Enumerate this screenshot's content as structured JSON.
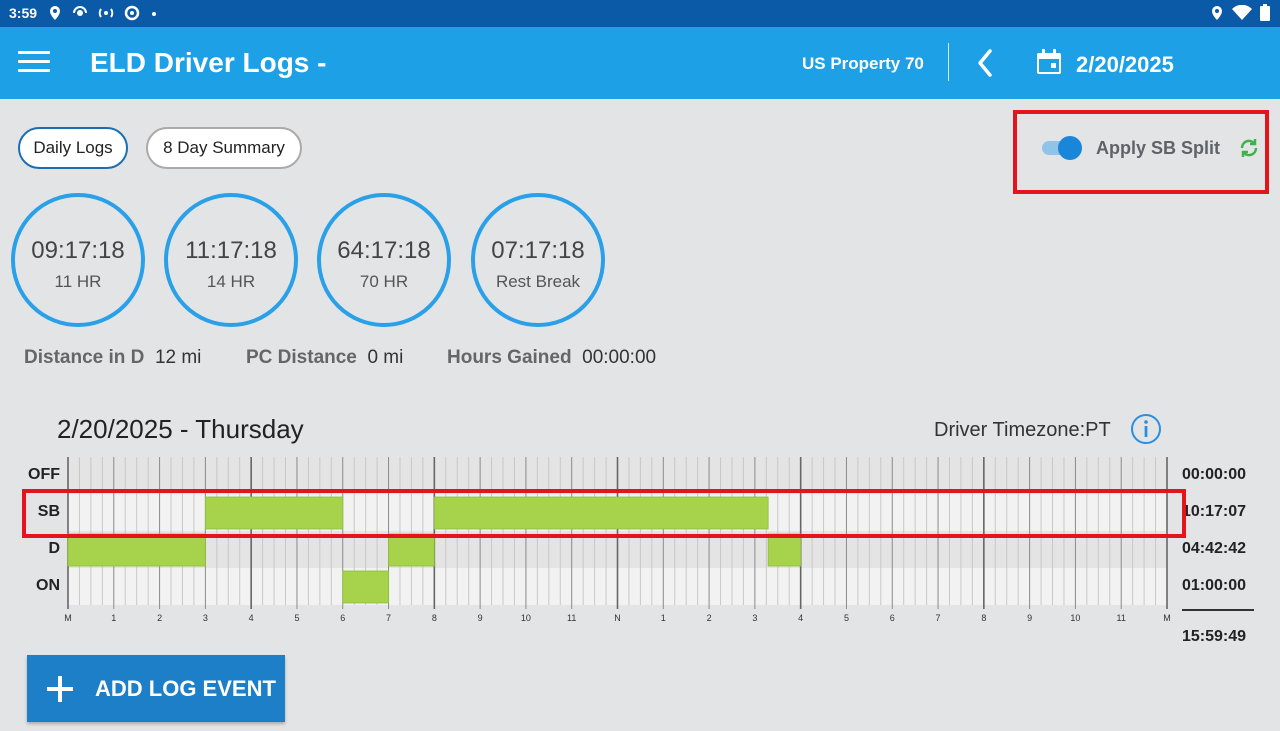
{
  "status": {
    "time": "3:59"
  },
  "appbar": {
    "title": "ELD Driver Logs -",
    "ruleset": "US Property 70",
    "date": "2/20/2025"
  },
  "tabs": [
    {
      "label": "Daily Logs",
      "active": true
    },
    {
      "label": "8 Day Summary",
      "active": false
    }
  ],
  "sb_split": {
    "label": "Apply SB Split",
    "enabled": true
  },
  "gauges": [
    {
      "value": "09:17:18",
      "label": "11 HR"
    },
    {
      "value": "11:17:18",
      "label": "14 HR"
    },
    {
      "value": "64:17:18",
      "label": "70 HR"
    },
    {
      "value": "07:17:18",
      "label": "Rest Break"
    }
  ],
  "stats": [
    {
      "label": "Distance in D",
      "value": "12 mi"
    },
    {
      "label": "PC Distance",
      "value": "0 mi"
    },
    {
      "label": "Hours Gained",
      "value": "00:00:00"
    }
  ],
  "log": {
    "day_title": "2/20/2025 - Thursday",
    "timezone_label": "Driver Timezone:",
    "timezone": "PT",
    "rows": [
      {
        "code": "OFF",
        "total": "00:00:00"
      },
      {
        "code": "SB",
        "total": "10:17:07"
      },
      {
        "code": "D",
        "total": "04:42:42"
      },
      {
        "code": "ON",
        "total": "01:00:00"
      }
    ],
    "grand_total": "15:59:49",
    "hour_labels": [
      "M",
      "1",
      "2",
      "3",
      "4",
      "5",
      "6",
      "7",
      "8",
      "9",
      "10",
      "11",
      "N",
      "1",
      "2",
      "3",
      "4",
      "5",
      "6",
      "7",
      "8",
      "9",
      "10",
      "11",
      "M"
    ],
    "segments": [
      {
        "status": "D",
        "start": 0.0,
        "end": 3.0
      },
      {
        "status": "SB",
        "start": 3.0,
        "end": 6.0
      },
      {
        "status": "ON",
        "start": 6.0,
        "end": 7.0
      },
      {
        "status": "D",
        "start": 7.0,
        "end": 8.0
      },
      {
        "status": "SB",
        "start": 8.0,
        "end": 15.29
      },
      {
        "status": "D",
        "start": 15.29,
        "end": 16.0
      }
    ]
  },
  "colors": {
    "accent": "#1ea0e6",
    "statusbar": "#0a5aa8",
    "segment": "#a6d34b",
    "highlight": "#e3141b",
    "refresh": "#3fb24a"
  },
  "actions": {
    "add_event_label": "ADD LOG EVENT"
  }
}
